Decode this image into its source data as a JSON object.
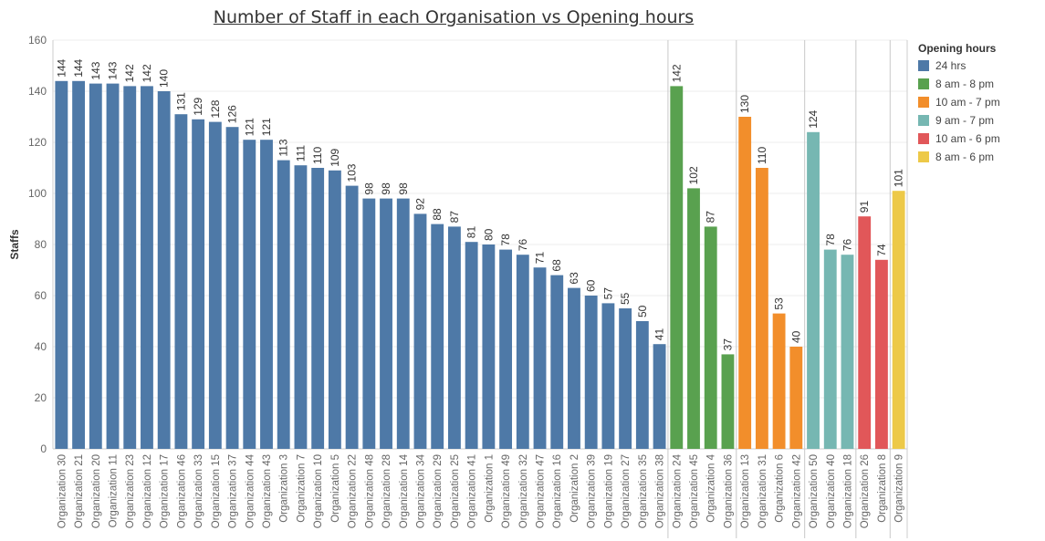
{
  "chart_data": {
    "type": "bar",
    "title": "Number of Staff in each Organisation vs Opening hours",
    "ylabel": "Staffs",
    "ylim": [
      0,
      160
    ],
    "yticks": [
      0,
      20,
      40,
      60,
      80,
      100,
      120,
      140,
      160
    ],
    "grid": true,
    "legend_title": "Opening hours",
    "legend_position": "right",
    "groups": [
      {
        "name": "24 hrs",
        "color": "#4e79a7",
        "categories": [
          "Organization 30",
          "Organization 21",
          "Organization 20",
          "Organization 11",
          "Organization 23",
          "Organization 12",
          "Organization 17",
          "Organization 46",
          "Organization 33",
          "Organization 15",
          "Organization 37",
          "Organization 44",
          "Organization 43",
          "Organization 3",
          "Organization 7",
          "Organization 10",
          "Organization 5",
          "Organization 22",
          "Organization 48",
          "Organization 28",
          "Organization 14",
          "Organization 34",
          "Organization 29",
          "Organization 25",
          "Organization 41",
          "Organization 1",
          "Organization 49",
          "Organization 32",
          "Organization 47",
          "Organization 16",
          "Organization 2",
          "Organization 39",
          "Organization 19",
          "Organization 27",
          "Organization 35",
          "Organization 38"
        ],
        "values": [
          144,
          144,
          143,
          143,
          142,
          142,
          140,
          131,
          129,
          128,
          126,
          121,
          121,
          113,
          111,
          110,
          109,
          103,
          98,
          98,
          98,
          92,
          88,
          87,
          81,
          80,
          78,
          76,
          71,
          68,
          63,
          60,
          57,
          55,
          50,
          41
        ]
      },
      {
        "name": "8 am - 8 pm",
        "color": "#59a14f",
        "categories": [
          "Organization 24",
          "Organization 45",
          "Organization 4",
          "Organization 36"
        ],
        "values": [
          142,
          102,
          87,
          37
        ]
      },
      {
        "name": "10 am - 7 pm",
        "color": "#f28e2b",
        "categories": [
          "Organization 13",
          "Organization 31",
          "Organization 6",
          "Organization 42"
        ],
        "values": [
          130,
          110,
          53,
          40
        ]
      },
      {
        "name": "9 am - 7 pm",
        "color": "#76b7b2",
        "categories": [
          "Organization 50",
          "Organization 40",
          "Organization 18"
        ],
        "values": [
          124,
          78,
          76
        ]
      },
      {
        "name": "10 am - 6 pm",
        "color": "#e15759",
        "categories": [
          "Organization 26",
          "Organization 8"
        ],
        "values": [
          91,
          74
        ]
      },
      {
        "name": "8 am - 6 pm",
        "color": "#edc948",
        "categories": [
          "Organization 9"
        ],
        "values": [
          101
        ]
      }
    ]
  }
}
